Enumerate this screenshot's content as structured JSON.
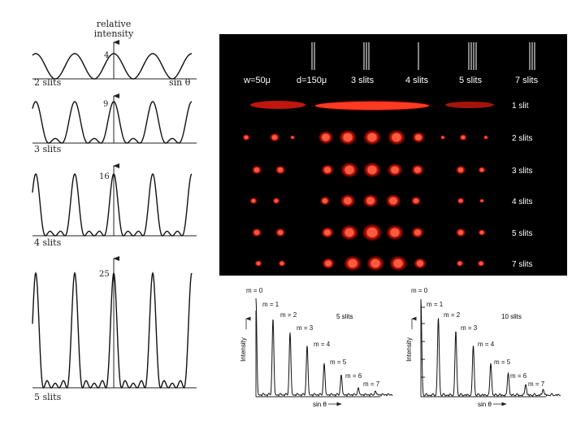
{
  "left_plots": {
    "y_axis_label_line1": "relative",
    "y_axis_label_line2": "intensity",
    "x_axis_label": "sin θ",
    "panels": [
      {
        "label": "2 slits",
        "peak_label": "4",
        "slits": 2
      },
      {
        "label": "3 slits",
        "peak_label": "9",
        "slits": 3
      },
      {
        "label": "4 slits",
        "peak_label": "16",
        "slits": 4
      },
      {
        "label": "5 slits",
        "peak_label": "25",
        "slits": 5
      }
    ]
  },
  "photo": {
    "column_labels": [
      "w=50μ",
      "d=150μ",
      "3 slits",
      "4 slits",
      "5 slits",
      "7 slits"
    ],
    "row_labels": [
      "1 slit",
      "2 slits",
      "3 slits",
      "4 slits",
      "5 slits",
      "7 slits"
    ],
    "colors": {
      "background": "#000000",
      "spot": "#ff2a1a",
      "text": "#ffffff"
    }
  },
  "bottom_plots": [
    {
      "caption": "5 slits",
      "orders": [
        "m = 0",
        "m = 1",
        "m = 2",
        "m = 3",
        "m = 4",
        "m = 5",
        "m = 6",
        "m = 7"
      ],
      "y_label": "Intensity",
      "x_label": "sin θ"
    },
    {
      "caption": "10 slits",
      "orders": [
        "m = 0",
        "m = 1",
        "m = 2",
        "m = 3",
        "m = 4",
        "m = 5",
        "m = 6",
        "m = 7"
      ],
      "y_label": "Intensity",
      "x_label": "sin θ"
    }
  ]
}
